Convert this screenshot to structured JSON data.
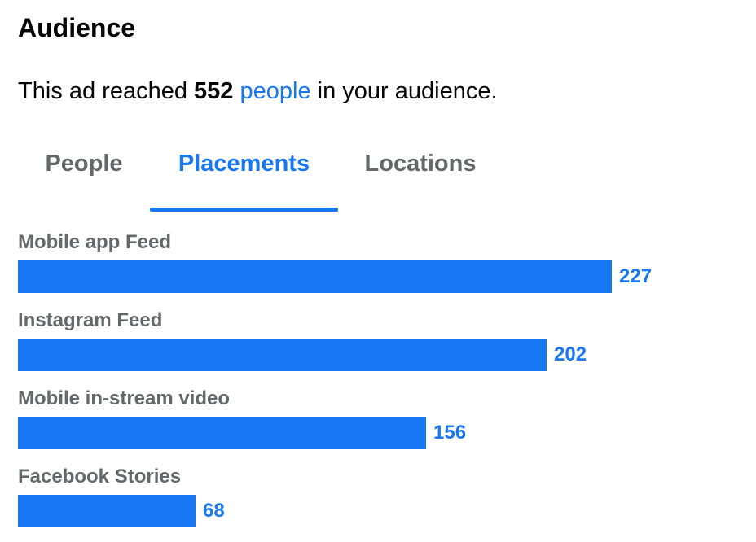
{
  "header": {
    "title": "Audience"
  },
  "summary": {
    "prefix": "This ad reached",
    "count": "552",
    "link": "people",
    "suffix": "in your audience."
  },
  "tabs": [
    {
      "label": "People",
      "active": false
    },
    {
      "label": "Placements",
      "active": true
    },
    {
      "label": "Locations",
      "active": false
    }
  ],
  "colors": {
    "accent": "#1877f2",
    "muted_text": "#65676b",
    "text": "#050505"
  },
  "chart_data": {
    "type": "bar",
    "orientation": "horizontal",
    "categories": [
      "Mobile app Feed",
      "Instagram Feed",
      "Mobile in-stream video",
      "Facebook Stories"
    ],
    "values": [
      227,
      202,
      156,
      68
    ],
    "value_labels": [
      "227",
      "202",
      "156",
      "68"
    ],
    "xlim": [
      0,
      282
    ],
    "grid": false,
    "legend": "none"
  }
}
